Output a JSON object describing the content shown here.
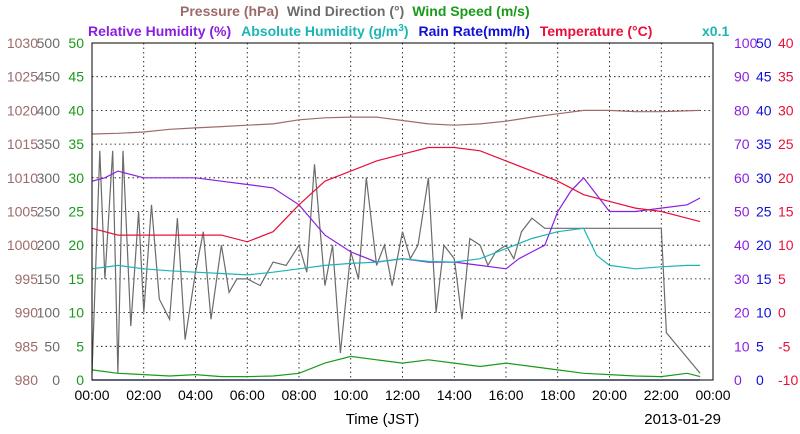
{
  "chart_data": {
    "type": "line",
    "date": "2013-01-29",
    "xlabel": "Time (JST)",
    "x_ticks": [
      "00:00",
      "02:00",
      "04:00",
      "06:00",
      "08:00",
      "10:00",
      "12:00",
      "14:00",
      "16:00",
      "18:00",
      "20:00",
      "22:00",
      "00:00"
    ],
    "xlim": [
      0,
      24
    ],
    "grid": true,
    "legend": {
      "row1": [
        {
          "text": "Pressure (hPa)",
          "color": "#9c6b6b"
        },
        {
          "text": "Wind Direction (°)",
          "color": "#6b6b6b"
        },
        {
          "text": "Wind Speed (m/s)",
          "color": "#1a9a1a"
        }
      ],
      "row2": [
        {
          "text": "Relative Humidity (%)",
          "color": "#8a1ee0"
        },
        {
          "text": "Absolute Humidity (g/m",
          "sup": "3",
          "close": ")",
          "color": "#1cb5b5"
        },
        {
          "text": "Rain Rate(mm/h)",
          "color": "#1010d8"
        },
        {
          "text": "Temperature (°C)",
          "color": "#e8103a"
        }
      ],
      "note": "x0.1"
    },
    "axes": {
      "pressure": {
        "label": "Pressure (hPa)",
        "range": [
          980,
          1030
        ],
        "ticks": [
          "1030",
          "1025",
          "1020",
          "1015",
          "1010",
          "1005",
          "1000",
          "995",
          "990",
          "985",
          "980"
        ],
        "color": "#9c6b6b"
      },
      "wind_direction": {
        "label": "Wind Direction (°)",
        "range": [
          0,
          500
        ],
        "ticks": [
          "500",
          "450",
          "400",
          "350",
          "300",
          "250",
          "200",
          "150",
          "100",
          "50",
          "0"
        ],
        "color": "#6b6b6b"
      },
      "wind_speed": {
        "label": "Wind Speed (m/s)",
        "range": [
          0,
          50
        ],
        "ticks": [
          "50",
          "45",
          "40",
          "35",
          "30",
          "25",
          "20",
          "15",
          "10",
          "5",
          "0"
        ],
        "color": "#1a9a1a"
      },
      "humidity": {
        "label": "Relative Humidity (%)",
        "range": [
          0,
          100
        ],
        "ticks": [
          "100",
          "90",
          "80",
          "70",
          "60",
          "50",
          "40",
          "30",
          "20",
          "10",
          "0"
        ],
        "color": "#8a1ee0"
      },
      "rain_rate": {
        "label": "Rain Rate(mm/h)",
        "range": [
          0,
          50
        ],
        "ticks": [
          "50",
          "45",
          "40",
          "35",
          "30",
          "25",
          "20",
          "15",
          "10",
          "5",
          "0"
        ],
        "color": "#1010d8"
      },
      "temperature": {
        "label": "Temperature (°C)",
        "range": [
          -10,
          40
        ],
        "ticks": [
          "40",
          "35",
          "30",
          "25",
          "20",
          "15",
          "10",
          "5",
          "0",
          "-5",
          "-10"
        ],
        "color": "#e8103a"
      }
    },
    "series": [
      {
        "name": "Pressure (hPa)",
        "axis": "pressure",
        "color": "#9c6b6b",
        "x": [
          0,
          1,
          2,
          3,
          4,
          5,
          6,
          7,
          8,
          9,
          10,
          11,
          12,
          13,
          14,
          15,
          16,
          17,
          18,
          19,
          20,
          21,
          22,
          23.5
        ],
        "y": [
          1016.5,
          1016.6,
          1016.8,
          1017.2,
          1017.4,
          1017.6,
          1017.8,
          1018.0,
          1018.6,
          1018.9,
          1019.0,
          1019.0,
          1018.5,
          1018.0,
          1017.8,
          1018.0,
          1018.4,
          1019.0,
          1019.5,
          1020.0,
          1020.0,
          1019.8,
          1019.8,
          1020.0
        ]
      },
      {
        "name": "Wind Direction (°)",
        "axis": "wind_direction",
        "color": "#6b6b6b",
        "x": [
          0,
          0.3,
          0.5,
          0.8,
          1,
          1.2,
          1.5,
          1.8,
          2,
          2.3,
          2.6,
          3,
          3.3,
          3.6,
          4,
          4.3,
          4.6,
          5,
          5.3,
          5.6,
          6,
          6.5,
          7,
          7.5,
          8,
          8.3,
          8.6,
          9,
          9.3,
          9.6,
          10,
          10.3,
          10.6,
          11,
          11.3,
          11.6,
          12,
          12.3,
          12.6,
          13,
          13.3,
          13.6,
          14,
          14.3,
          14.6,
          15,
          15.3,
          15.6,
          16,
          16.3,
          16.6,
          17,
          17.5,
          18,
          19,
          20,
          21,
          22,
          22.2,
          23.5
        ],
        "y": [
          10,
          340,
          150,
          340,
          10,
          340,
          80,
          250,
          100,
          260,
          120,
          90,
          240,
          60,
          160,
          220,
          90,
          200,
          130,
          150,
          150,
          140,
          175,
          170,
          200,
          160,
          320,
          140,
          200,
          40,
          190,
          150,
          300,
          170,
          200,
          140,
          220,
          180,
          200,
          300,
          100,
          200,
          180,
          90,
          210,
          200,
          170,
          190,
          200,
          180,
          220,
          240,
          225,
          225,
          225,
          225,
          225,
          225,
          70,
          10
        ]
      },
      {
        "name": "Wind Speed (m/s)",
        "axis": "wind_speed",
        "color": "#1a9a1a",
        "x": [
          0,
          1,
          2,
          3,
          4,
          5,
          6,
          7,
          8,
          9,
          10,
          11,
          12,
          13,
          14,
          15,
          16,
          17,
          18,
          19,
          20,
          21,
          22,
          23,
          23.5
        ],
        "y": [
          1.5,
          1.0,
          0.8,
          0.6,
          0.8,
          0.5,
          0.5,
          0.6,
          1.0,
          2.5,
          3.5,
          3.0,
          2.5,
          3.0,
          2.5,
          2.0,
          2.5,
          2.0,
          1.5,
          1.0,
          0.8,
          0.6,
          0.5,
          1.0,
          0.5
        ]
      },
      {
        "name": "Relative Humidity (%)",
        "axis": "humidity",
        "color": "#8a1ee0",
        "x": [
          0,
          0.5,
          1,
          2,
          3,
          4,
          5,
          6,
          7,
          8,
          9,
          10,
          11,
          12,
          13,
          14,
          15,
          16,
          16.5,
          17,
          17.5,
          18,
          18.5,
          19,
          20,
          21,
          22,
          23,
          23.5
        ],
        "y": [
          59,
          60,
          62,
          60,
          60,
          60,
          59,
          58,
          57,
          52,
          43,
          38,
          35,
          36,
          35,
          35,
          34,
          33,
          36,
          38,
          40,
          50,
          56,
          60,
          50,
          50,
          51,
          52,
          54
        ]
      },
      {
        "name": "Absolute Humidity (g/m3)",
        "axis": "rain_rate",
        "color": "#1cb5b5",
        "x": [
          0,
          1,
          2,
          3,
          4,
          5,
          6,
          7,
          8,
          9,
          10,
          11,
          12,
          13,
          14,
          15,
          16,
          17,
          18,
          19,
          19.5,
          20,
          21,
          22,
          23,
          23.5
        ],
        "y": [
          16.5,
          17.0,
          16.5,
          16.2,
          16.0,
          15.8,
          15.6,
          16.0,
          16.5,
          17.0,
          17.3,
          17.5,
          18.0,
          17.6,
          17.5,
          18.0,
          19.5,
          21.0,
          22.0,
          22.5,
          18.5,
          17.0,
          16.5,
          16.8,
          17.0,
          17.0
        ]
      },
      {
        "name": "Rain Rate(mm/h)",
        "axis": "rain_rate",
        "color": "#1010d8",
        "x": [
          0,
          23.5
        ],
        "y": [
          0,
          0
        ]
      },
      {
        "name": "Temperature (°C)",
        "axis": "temperature",
        "color": "#e8103a",
        "x": [
          0,
          1,
          2,
          3,
          4,
          5,
          6,
          7,
          8,
          9,
          10,
          11,
          12,
          13,
          14,
          15,
          16,
          17,
          18,
          19,
          20,
          21,
          22,
          23,
          23.5
        ],
        "y": [
          12.5,
          11.5,
          11.5,
          11.5,
          11.5,
          11.5,
          10.5,
          12.0,
          16.0,
          19.5,
          21.0,
          22.5,
          23.5,
          24.5,
          24.5,
          24.0,
          22.5,
          21.0,
          19.5,
          17.5,
          16.5,
          15.5,
          15.0,
          14.0,
          13.5
        ]
      }
    ]
  }
}
